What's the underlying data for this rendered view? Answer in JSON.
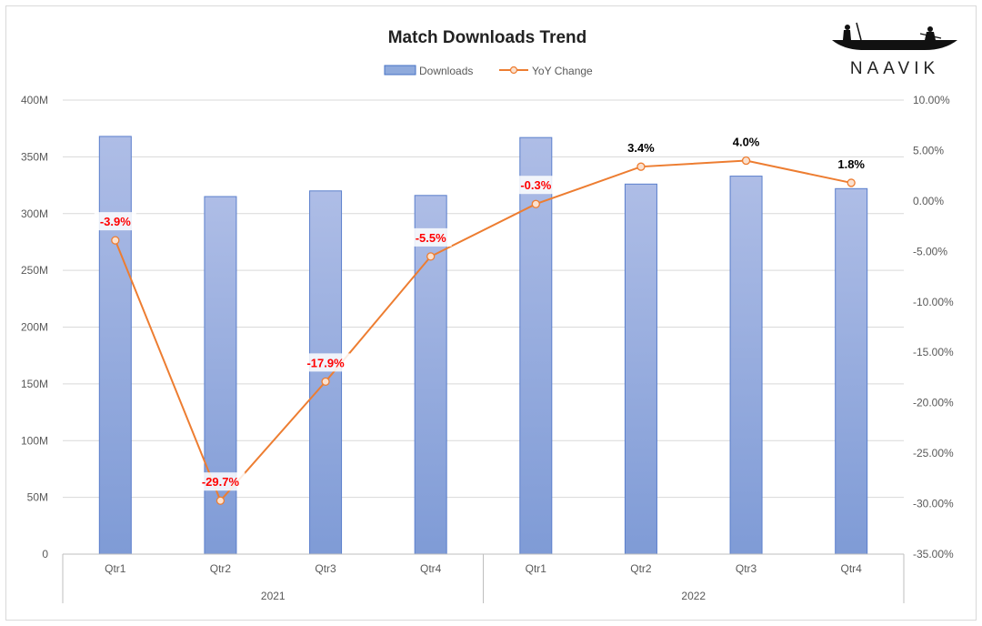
{
  "chart_data": {
    "type": "bar",
    "title": "Match Downloads Trend",
    "brand": "NAAVIK",
    "legend": {
      "placement": "top-center"
    },
    "categories": [
      "Qtr1",
      "Qtr2",
      "Qtr3",
      "Qtr4",
      "Qtr1",
      "Qtr2",
      "Qtr3",
      "Qtr4"
    ],
    "groups": [
      {
        "label": "2021",
        "count": 4
      },
      {
        "label": "2022",
        "count": 4
      }
    ],
    "series": [
      {
        "name": "Downloads",
        "type": "bar",
        "axis": "left",
        "color": "#8faadc",
        "values": [
          368000000,
          315000000,
          320000000,
          316000000,
          367000000,
          326000000,
          333000000,
          322000000
        ]
      },
      {
        "name": "YoY Change",
        "type": "line",
        "axis": "right",
        "color": "#ed7d31",
        "values": [
          -3.9,
          -29.7,
          -17.9,
          -5.5,
          -0.3,
          3.4,
          4.0,
          1.8
        ],
        "data_labels": [
          "-3.9%",
          "-29.7%",
          "-17.9%",
          "-5.5%",
          "-0.3%",
          "3.4%",
          "4.0%",
          "1.8%"
        ],
        "negative_label_color": "#ff0000",
        "positive_label_color": "#000000"
      }
    ],
    "y_left": {
      "ylim": [
        0,
        400000000
      ],
      "ticks": [
        0,
        50000000,
        100000000,
        150000000,
        200000000,
        250000000,
        300000000,
        350000000,
        400000000
      ],
      "tick_labels": [
        "0",
        "50M",
        "100M",
        "150M",
        "200M",
        "250M",
        "300M",
        "350M",
        "400M"
      ]
    },
    "y_right": {
      "ylim": [
        -35,
        10
      ],
      "ticks": [
        -35,
        -30,
        -25,
        -20,
        -15,
        -10,
        -5,
        0,
        5,
        10
      ],
      "tick_labels": [
        "-35.00%",
        "-30.00%",
        "-25.00%",
        "-20.00%",
        "-15.00%",
        "-10.00%",
        "-5.00%",
        "0.00%",
        "5.00%",
        "10.00%"
      ]
    },
    "grid": true
  }
}
